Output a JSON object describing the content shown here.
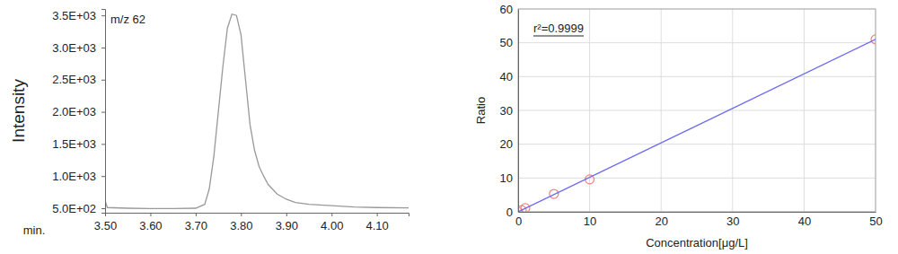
{
  "chart_data": [
    {
      "type": "line",
      "y_label": "Intensity",
      "x_label": "min.",
      "annotations": [
        "m/z 62"
      ],
      "xlim": [
        3.5,
        4.17
      ],
      "xticks": [
        {
          "value": 3.5,
          "label": "3.50"
        },
        {
          "value": 3.6,
          "label": "3.60"
        },
        {
          "value": 3.7,
          "label": "3.70"
        },
        {
          "value": 3.8,
          "label": "3.80"
        },
        {
          "value": 3.9,
          "label": "3.90"
        },
        {
          "value": 4.0,
          "label": "4.00"
        },
        {
          "value": 4.1,
          "label": "4.10"
        }
      ],
      "ylim": [
        430,
        3600
      ],
      "yticks": [
        {
          "value": 500,
          "label": "5.0E+02"
        },
        {
          "value": 1000,
          "label": "1.0E+03"
        },
        {
          "value": 1500,
          "label": "1.5E+03"
        },
        {
          "value": 2000,
          "label": "2.0E+03"
        },
        {
          "value": 2500,
          "label": "2.5E+03"
        },
        {
          "value": 3000,
          "label": "3.0E+03"
        },
        {
          "value": 3500,
          "label": "3.5E+03"
        }
      ],
      "grid": false,
      "series": [
        {
          "color": "#999999",
          "x": [
            3.5,
            3.505,
            3.55,
            3.6,
            3.65,
            3.7,
            3.72,
            3.73,
            3.74,
            3.75,
            3.76,
            3.77,
            3.78,
            3.79,
            3.8,
            3.81,
            3.82,
            3.83,
            3.84,
            3.85,
            3.86,
            3.88,
            3.9,
            3.92,
            3.95,
            4.0,
            4.05,
            4.1,
            4.17
          ],
          "values": [
            620,
            510,
            500,
            495,
            495,
            500,
            560,
            800,
            1300,
            2000,
            2700,
            3300,
            3520,
            3500,
            3200,
            2500,
            1800,
            1400,
            1150,
            1000,
            870,
            720,
            640,
            590,
            560,
            540,
            520,
            510,
            505
          ]
        }
      ]
    },
    {
      "type": "scatter",
      "y_label": "Ratio",
      "x_label": "Concentration[μg/L]",
      "annotations": [
        "r²=0.9999"
      ],
      "xlim": [
        0,
        50
      ],
      "xticks": [
        0,
        10,
        20,
        30,
        40,
        50
      ],
      "ylim": [
        0,
        60
      ],
      "yticks": [
        0,
        10,
        20,
        30,
        40,
        50,
        60
      ],
      "grid": true,
      "series": [
        {
          "type": "scatter",
          "marker": "circle",
          "color": "#f08080",
          "x": [
            0,
            0.5,
            1,
            5,
            10,
            50
          ],
          "values": [
            0,
            0.5,
            1.1,
            5.3,
            9.6,
            51
          ]
        },
        {
          "type": "line",
          "color": "#6a6aef",
          "x": [
            0,
            50
          ],
          "values": [
            0,
            51
          ]
        }
      ]
    }
  ]
}
